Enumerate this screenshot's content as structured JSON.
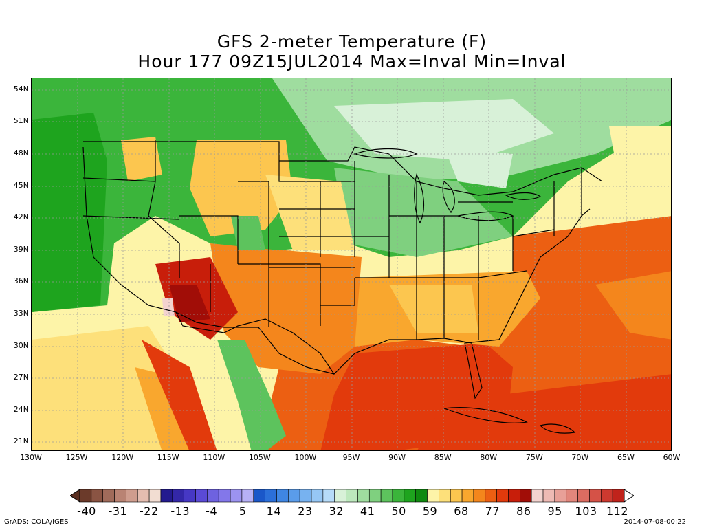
{
  "title": {
    "line1": "GFS 2-meter Temperature (F)",
    "line2": "Hour 177 09Z15JUL2014 Max=Inval Min=Inval"
  },
  "lat_labels": [
    "54N",
    "51N",
    "48N",
    "45N",
    "42N",
    "39N",
    "36N",
    "33N",
    "30N",
    "27N",
    "24N",
    "21N"
  ],
  "lon_labels": [
    "130W",
    "125W",
    "120W",
    "115W",
    "110W",
    "105W",
    "100W",
    "95W",
    "90W",
    "85W",
    "80W",
    "75W",
    "70W",
    "65W",
    "60W"
  ],
  "colorbar": {
    "labels": [
      "-40",
      "-31",
      "-22",
      "-13",
      "-4",
      "5",
      "14",
      "23",
      "32",
      "41",
      "50",
      "59",
      "68",
      "77",
      "86",
      "95",
      "103",
      "112"
    ],
    "colors": [
      "#6b3a2a",
      "#8a5443",
      "#a06b5a",
      "#b98373",
      "#cf9d8e",
      "#e4bdb0",
      "#f2ddd2",
      "#231a8f",
      "#3327a8",
      "#4638c4",
      "#5a4ad6",
      "#6e62e0",
      "#8377ea",
      "#9c93f0",
      "#b7b1f6",
      "#1a57c9",
      "#2b6fd9",
      "#3f86e3",
      "#5a9cea",
      "#77b2f0",
      "#96c7f5",
      "#b6dbf9",
      "#d8f1d8",
      "#bde8bd",
      "#9fdd9f",
      "#7fd07f",
      "#5dc35d",
      "#3bb53b",
      "#1ea41e",
      "#0f8a0f",
      "#fdf4a8",
      "#fde07a",
      "#fcc64f",
      "#f9a72e",
      "#f4861c",
      "#ec5f12",
      "#e23a0c",
      "#c81e0a",
      "#a10d07",
      "#f3d3cf",
      "#eebab4",
      "#e8a098",
      "#e2867c",
      "#dc6c61",
      "#d55247",
      "#cd392f",
      "#c0231b"
    ]
  },
  "footer": {
    "left": "GrADS: COLA/IGES",
    "right": "2014-07-08-00:22"
  }
}
